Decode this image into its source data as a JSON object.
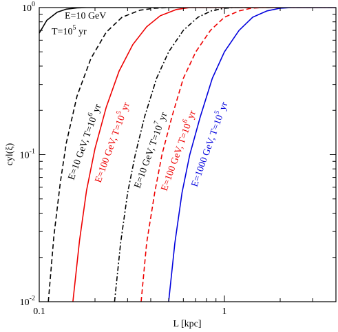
{
  "chart_data": {
    "type": "line",
    "xlabel": "L [kpc]",
    "ylabel": "cyl(ξ)",
    "xscale": "log",
    "yscale": "log",
    "xlim": [
      0.1,
      4.0
    ],
    "ylim": [
      0.01,
      1.0
    ],
    "grid": false,
    "legend": "none",
    "x_ticks": [
      {
        "value": 0.1,
        "label": "0.1"
      },
      {
        "value": 1,
        "label": "1"
      }
    ],
    "y_ticks": [
      {
        "value": 0.01,
        "base": "10",
        "exp": "-2"
      },
      {
        "value": 0.1,
        "base": "10",
        "exp": "-1"
      },
      {
        "value": 1,
        "base": "10",
        "exp": "0"
      }
    ],
    "series": [
      {
        "label_line1": "E=10 GeV",
        "label_line2_pre": "T=10",
        "label_line2_exp": "5",
        "label_line2_post": " yr",
        "color": "#000000",
        "dash": "solid",
        "points": [
          [
            0.1,
            0.67
          ],
          [
            0.11,
            0.82
          ],
          [
            0.125,
            0.93
          ],
          [
            0.14,
            0.975
          ],
          [
            0.16,
            0.995
          ],
          [
            0.18,
            1.0
          ]
        ]
      },
      {
        "label_pre": "E=10 GeV, T=10",
        "label_exp": "6",
        "label_post": " yr",
        "color": "#000000",
        "dash": "dashed",
        "points": [
          [
            0.112,
            0.01
          ],
          [
            0.12,
            0.028
          ],
          [
            0.13,
            0.065
          ],
          [
            0.14,
            0.12
          ],
          [
            0.16,
            0.25
          ],
          [
            0.19,
            0.45
          ],
          [
            0.23,
            0.68
          ],
          [
            0.28,
            0.86
          ],
          [
            0.35,
            0.96
          ],
          [
            0.42,
            0.99
          ],
          [
            0.5,
            1.0
          ]
        ]
      },
      {
        "label_pre": "E=100 GeV, T=10",
        "label_exp": "5",
        "label_post": " yr",
        "color": "#ee0000",
        "dash": "solid",
        "points": [
          [
            0.152,
            0.01
          ],
          [
            0.165,
            0.026
          ],
          [
            0.18,
            0.057
          ],
          [
            0.2,
            0.11
          ],
          [
            0.23,
            0.21
          ],
          [
            0.27,
            0.37
          ],
          [
            0.32,
            0.56
          ],
          [
            0.38,
            0.74
          ],
          [
            0.45,
            0.88
          ],
          [
            0.55,
            0.97
          ],
          [
            0.65,
            1.0
          ]
        ]
      },
      {
        "label_pre": "E=10 GeV, T=10",
        "label_exp": "7",
        "label_post": " yr",
        "color": "#000000",
        "dash": "dashdot",
        "points": [
          [
            0.255,
            0.01
          ],
          [
            0.275,
            0.025
          ],
          [
            0.3,
            0.055
          ],
          [
            0.33,
            0.1
          ],
          [
            0.37,
            0.18
          ],
          [
            0.43,
            0.33
          ],
          [
            0.5,
            0.5
          ],
          [
            0.6,
            0.7
          ],
          [
            0.72,
            0.86
          ],
          [
            0.85,
            0.95
          ],
          [
            1.0,
            0.99
          ],
          [
            1.15,
            1.0
          ]
        ]
      },
      {
        "label_pre": "E=100 GeV, T=10",
        "label_exp": "6",
        "label_post": " yr",
        "color": "#ee0000",
        "dash": "dashed",
        "points": [
          [
            0.355,
            0.01
          ],
          [
            0.38,
            0.025
          ],
          [
            0.42,
            0.055
          ],
          [
            0.46,
            0.1
          ],
          [
            0.52,
            0.18
          ],
          [
            0.6,
            0.33
          ],
          [
            0.7,
            0.5
          ],
          [
            0.84,
            0.7
          ],
          [
            1.0,
            0.86
          ],
          [
            1.2,
            0.95
          ],
          [
            1.4,
            0.99
          ],
          [
            1.6,
            1.0
          ]
        ]
      },
      {
        "label_pre": "E=1000 GeV, T=10",
        "label_exp": "5",
        "label_post": " yr",
        "color": "#0000dd",
        "dash": "solid",
        "points": [
          [
            0.5,
            0.01
          ],
          [
            0.54,
            0.025
          ],
          [
            0.59,
            0.055
          ],
          [
            0.65,
            0.1
          ],
          [
            0.74,
            0.18
          ],
          [
            0.86,
            0.33
          ],
          [
            1.0,
            0.5
          ],
          [
            1.2,
            0.7
          ],
          [
            1.42,
            0.86
          ],
          [
            1.7,
            0.95
          ],
          [
            2.0,
            0.99
          ],
          [
            2.3,
            1.0
          ]
        ]
      }
    ]
  }
}
